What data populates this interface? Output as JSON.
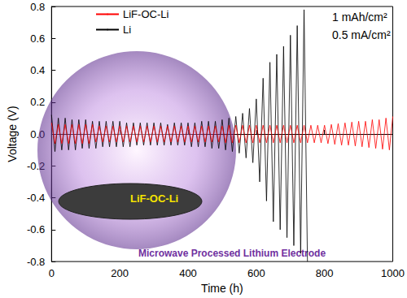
{
  "chart_data": {
    "type": "line",
    "xlabel": "Time (h)",
    "ylabel": "Voltage (V)",
    "x": [
      0,
      10,
      20,
      30,
      40,
      50,
      60,
      70,
      80,
      90,
      100,
      110,
      120,
      130,
      140,
      150,
      160,
      170,
      180,
      190,
      200,
      210,
      220,
      230,
      240,
      250,
      260,
      270,
      280,
      290,
      300,
      310,
      320,
      330,
      340,
      350,
      360,
      370,
      380,
      390,
      400,
      410,
      420,
      430,
      440,
      450,
      460,
      470,
      480,
      490,
      500,
      510,
      520,
      530,
      540,
      550,
      560,
      570,
      580,
      590,
      600,
      610,
      620,
      630,
      640,
      650,
      660,
      670,
      680,
      690,
      700,
      710,
      720,
      730,
      740,
      750,
      760,
      770,
      780,
      790,
      800,
      810,
      820,
      830,
      840,
      850,
      860,
      870,
      880,
      890,
      900,
      910,
      920,
      930,
      940,
      950,
      960,
      970,
      980,
      990,
      1000
    ],
    "series": [
      {
        "name": "LiF-OC-Li",
        "color": "#ff0000",
        "values": [
          0.07,
          -0.06,
          0.06,
          -0.06,
          0.06,
          -0.06,
          0.06,
          -0.06,
          0.06,
          -0.06,
          0.06,
          -0.06,
          0.06,
          -0.05,
          0.05,
          -0.05,
          0.05,
          -0.05,
          0.05,
          -0.05,
          0.05,
          -0.05,
          0.05,
          -0.05,
          0.05,
          -0.05,
          0.05,
          -0.05,
          0.05,
          -0.05,
          0.05,
          -0.05,
          0.05,
          -0.05,
          0.05,
          -0.05,
          0.05,
          -0.05,
          0.05,
          -0.05,
          0.05,
          -0.05,
          0.05,
          -0.05,
          0.05,
          -0.05,
          0.05,
          -0.05,
          0.05,
          -0.05,
          0.05,
          -0.055,
          0.055,
          -0.055,
          0.055,
          -0.055,
          0.055,
          -0.055,
          0.055,
          -0.055,
          0.055,
          -0.055,
          0.055,
          -0.055,
          0.055,
          -0.055,
          0.055,
          -0.055,
          0.055,
          -0.055,
          0.055,
          -0.055,
          0.055,
          -0.055,
          0.055,
          -0.055,
          0.055,
          -0.055,
          0.055,
          -0.055,
          0.055,
          -0.06,
          0.06,
          -0.065,
          0.065,
          -0.07,
          0.07,
          -0.07,
          0.075,
          -0.075,
          0.08,
          -0.08,
          0.08,
          -0.085,
          0.09,
          -0.09,
          0.09,
          -0.095,
          0.1,
          -0.1,
          0.11
        ]
      },
      {
        "name": "Li",
        "color": "#000000",
        "values": [
          0.12,
          -0.11,
          0.1,
          -0.1,
          0.1,
          -0.1,
          0.09,
          -0.1,
          0.09,
          -0.09,
          0.09,
          -0.09,
          0.08,
          -0.09,
          0.08,
          -0.08,
          0.08,
          -0.08,
          0.08,
          -0.08,
          0.08,
          -0.08,
          0.07,
          -0.08,
          0.07,
          -0.07,
          0.07,
          -0.07,
          0.07,
          -0.07,
          0.07,
          -0.07,
          0.07,
          -0.07,
          0.06,
          -0.07,
          0.07,
          -0.07,
          0.07,
          -0.07,
          0.07,
          -0.08,
          0.07,
          -0.08,
          0.08,
          -0.08,
          0.08,
          -0.09,
          0.08,
          -0.09,
          0.09,
          -0.1,
          0.1,
          -0.11,
          0.11,
          -0.12,
          0.13,
          -0.15,
          0.16,
          -0.18,
          0.22,
          -0.3,
          0.35,
          -0.42,
          0.45,
          -0.55,
          0.5,
          -0.6,
          0.55,
          -0.65,
          0.62,
          -0.7,
          0.68,
          -0.75,
          0.78,
          -0.8,
          null,
          null,
          null,
          null,
          null,
          null,
          null,
          null,
          null,
          null,
          null,
          null,
          null,
          null,
          null,
          null,
          null,
          null,
          null,
          null,
          null,
          null,
          null,
          null,
          null
        ]
      }
    ],
    "xlim": [
      0,
      1000
    ],
    "xticks": [
      0,
      200,
      400,
      600,
      800,
      1000
    ],
    "ylim": [
      -0.8,
      0.8
    ],
    "yticks": [
      -0.8,
      -0.6,
      -0.4,
      -0.2,
      {
        "value": 0,
        "label": "0.0"
      },
      0.2,
      0.4,
      0.6,
      0.8
    ],
    "legend": "upper left",
    "grid": false,
    "annotations": [
      "1 mAh/cm²",
      "0.5 mA/cm²"
    ],
    "inset": {
      "disc_label": "LiF-OC-Li",
      "caption": "Microwave Processed Lithium Electrode"
    }
  }
}
